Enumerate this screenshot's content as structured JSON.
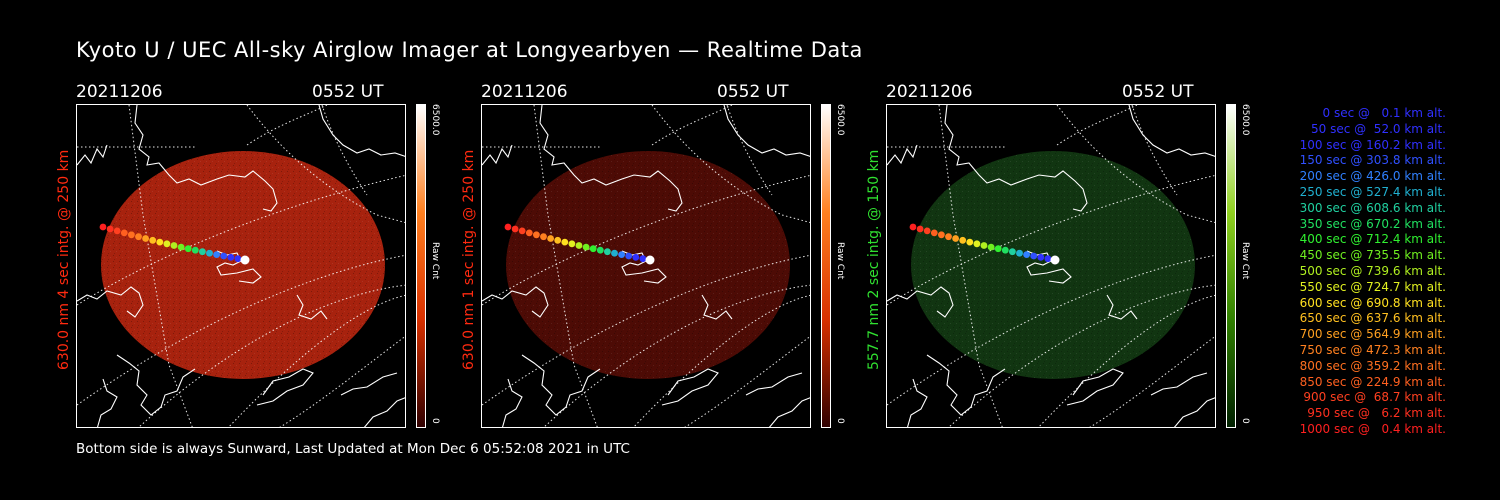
{
  "title": "Kyoto U / UEC All-sky Airglow Imager at Longyearbyen — Realtime Data",
  "panels": [
    {
      "date": "20211206",
      "time": "0552 UT",
      "side_label": "630.0 nm 4 sec intg. @ 250 km",
      "label_color": "#ff2a10",
      "colorbar_max": "6500.0",
      "colorbar_min": "0",
      "colorbar_unit": "Raw Cnt",
      "colorbar_colors": [
        "#ffffff",
        "#ff8020",
        "#d83000",
        "#300000"
      ],
      "image_color": "#c42810",
      "image_brightness": 0.85
    },
    {
      "date": "20211206",
      "time": "0552 UT",
      "side_label": "630.0 nm 1 sec intg. @ 250 km",
      "label_color": "#ff2a10",
      "colorbar_max": "6500.0",
      "colorbar_min": "0",
      "colorbar_unit": "Raw Cnt",
      "colorbar_colors": [
        "#ffffff",
        "#ff8020",
        "#d83000",
        "#300000"
      ],
      "image_color": "#5a0d06",
      "image_brightness": 0.85
    },
    {
      "date": "20211206",
      "time": "0552 UT",
      "side_label": "557.7 nm 2 sec intg. @ 150 km",
      "label_color": "#30e030",
      "colorbar_max": "6500.0",
      "colorbar_min": "0",
      "colorbar_unit": "Raw Cnt",
      "colorbar_colors": [
        "#ffffff",
        "#90d020",
        "#308000",
        "#002000"
      ],
      "image_color": "#143e14",
      "image_brightness": 0.85
    }
  ],
  "legend": [
    {
      "text": "0 sec @   0.1 km alt.",
      "color": "#3030ff"
    },
    {
      "text": "50 sec @  52.0 km alt.",
      "color": "#3030ff"
    },
    {
      "text": "100 sec @ 160.2 km alt.",
      "color": "#3030ff"
    },
    {
      "text": "150 sec @ 303.8 km alt.",
      "color": "#3050ff"
    },
    {
      "text": "200 sec @ 426.0 km alt.",
      "color": "#3080ff"
    },
    {
      "text": "250 sec @ 527.4 km alt.",
      "color": "#20b0d0"
    },
    {
      "text": "300 sec @ 608.6 km alt.",
      "color": "#20d0a0"
    },
    {
      "text": "350 sec @ 670.2 km alt.",
      "color": "#20e060"
    },
    {
      "text": "400 sec @ 712.4 km alt.",
      "color": "#30f030"
    },
    {
      "text": "450 sec @ 735.5 km alt.",
      "color": "#70f020"
    },
    {
      "text": "500 sec @ 739.6 km alt.",
      "color": "#b0f020"
    },
    {
      "text": "550 sec @ 724.7 km alt.",
      "color": "#e0f020"
    },
    {
      "text": "600 sec @ 690.8 km alt.",
      "color": "#ffe020"
    },
    {
      "text": "650 sec @ 637.6 km alt.",
      "color": "#ffc020"
    },
    {
      "text": "700 sec @ 564.9 km alt.",
      "color": "#ffa020"
    },
    {
      "text": "750 sec @ 472.3 km alt.",
      "color": "#ff8020"
    },
    {
      "text": "800 sec @ 359.2 km alt.",
      "color": "#ff7020"
    },
    {
      "text": "850 sec @ 224.9 km alt.",
      "color": "#ff6020"
    },
    {
      "text": "900 sec @  68.7 km alt.",
      "color": "#ff4020"
    },
    {
      "text": "950 sec @   6.2 km alt.",
      "color": "#ff3020"
    },
    {
      "text": "1000 sec @   0.4 km alt.",
      "color": "#ff2020"
    }
  ],
  "trajectory_colors": [
    "#ff2020",
    "#ff3020",
    "#ff4020",
    "#ff6020",
    "#ff7020",
    "#ff8020",
    "#ffa020",
    "#ffc020",
    "#ffe020",
    "#e0f020",
    "#b0f020",
    "#70f020",
    "#30f030",
    "#20e060",
    "#20d0a0",
    "#20b0d0",
    "#3080ff",
    "#3050ff",
    "#3030ff",
    "#3030ff",
    "#ffffff"
  ],
  "footer": "Bottom side is always Sunward, Last Updated at Mon Dec  6 05:52:08 2021 in UTC"
}
